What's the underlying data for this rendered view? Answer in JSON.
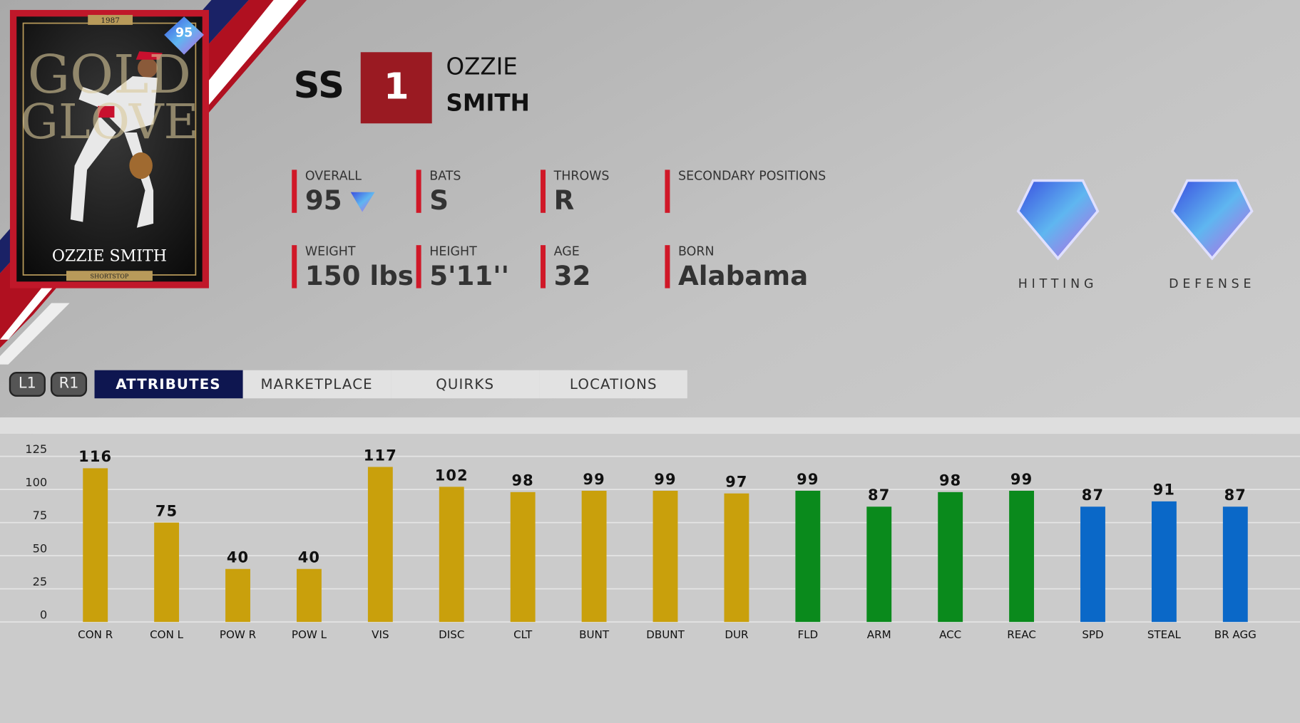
{
  "card": {
    "year": "1987",
    "rating": "95",
    "title_top": "GOLD",
    "title_bottom": "GLOVE",
    "name": "OZZIE SMITH",
    "position": "SHORTSTOP"
  },
  "header": {
    "position": "SS",
    "number": "1",
    "first_name": "OZZIE",
    "last_name": "SMITH"
  },
  "info": [
    {
      "label": "OVERALL",
      "value": "95"
    },
    {
      "label": "BATS",
      "value": "S"
    },
    {
      "label": "THROWS",
      "value": "R"
    },
    {
      "label": "SECONDARY POSITIONS"
    },
    {
      "label": "WEIGHT",
      "value": "150 lbs"
    },
    {
      "label": "HEIGHT",
      "value": "5'11''"
    },
    {
      "label": "AGE",
      "value": "32"
    },
    {
      "label": "BORN",
      "value": "Alabama"
    }
  ],
  "badges": [
    "HITTING",
    "DEFENSE"
  ],
  "buttons": [
    "L1",
    "R1"
  ],
  "tabs": [
    "ATTRIBUTES",
    "MARKETPLACE",
    "QUIRKS",
    "LOCATIONS"
  ],
  "chart_data": {
    "type": "bar",
    "categories": [
      "CON R",
      "CON L",
      "POW R",
      "POW L",
      "VIS",
      "DISC",
      "CLT",
      "BUNT",
      "DBUNT",
      "DUR",
      "FLD",
      "ARM",
      "ACC",
      "REAC",
      "SPD",
      "STEAL",
      "BR AGG"
    ],
    "values": [
      116,
      75,
      40,
      40,
      117,
      102,
      98,
      99,
      99,
      97,
      99,
      87,
      98,
      99,
      87,
      91,
      87
    ],
    "colors": [
      "#c9a00c",
      "#c9a00c",
      "#c9a00c",
      "#c9a00c",
      "#c9a00c",
      "#c9a00c",
      "#c9a00c",
      "#c9a00c",
      "#c9a00c",
      "#c9a00c",
      "#0a8a1c",
      "#0a8a1c",
      "#0a8a1c",
      "#0a8a1c",
      "#0a68c8",
      "#0a68c8",
      "#0a68c8"
    ],
    "ylim": [
      0,
      125
    ],
    "yticks": [
      0,
      25,
      50,
      75,
      100,
      125
    ],
    "grid": true
  }
}
